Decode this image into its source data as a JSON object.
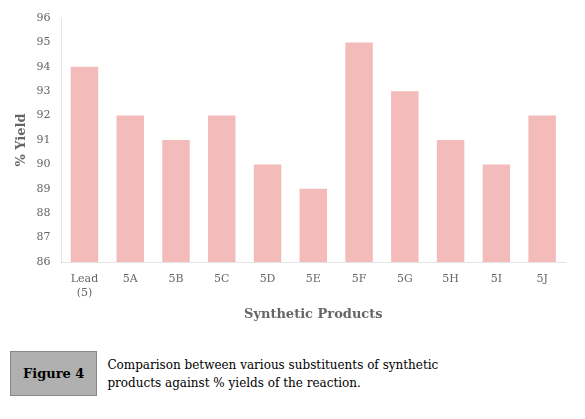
{
  "chart_data": {
    "type": "bar",
    "categories": [
      "Lead\n(5)",
      "5A",
      "5B",
      "5C",
      "5D",
      "5E",
      "5F",
      "5G",
      "5H",
      "5I",
      "5J"
    ],
    "values": [
      94,
      92,
      91,
      92,
      90,
      89,
      95,
      93,
      91,
      90,
      92
    ],
    "color": "#F4BBBB",
    "xlabel": "Synthetic Products",
    "ylabel": "% Yield",
    "ylim": [
      86,
      96
    ],
    "yticks": [
      86,
      87,
      88,
      89,
      90,
      91,
      92,
      93,
      94,
      95,
      96
    ],
    "grid": false,
    "annotations": [
      "Figure 4",
      "Comparison between various substituents of synthetic\nproducts against % yields of the reaction."
    ]
  }
}
